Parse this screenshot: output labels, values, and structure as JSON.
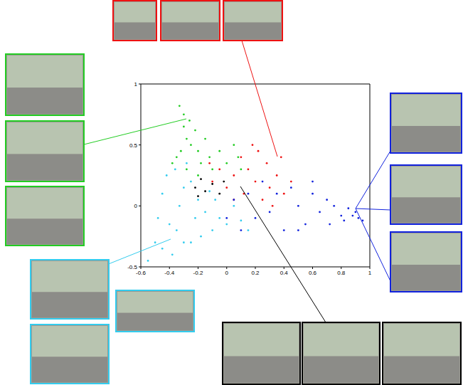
{
  "chart_data": {
    "type": "scatter",
    "xlim": [
      -0.6,
      1
    ],
    "xticks": [
      -0.6,
      -0.4,
      -0.2,
      0,
      0.2,
      0.4,
      0.6,
      0.8,
      1
    ],
    "ylim": [
      -0.5,
      1
    ],
    "yticks": [
      -0.5,
      0,
      0.5,
      1
    ],
    "marker": "dot",
    "series": [
      {
        "color": "#33ccee",
        "x": [
          -0.55,
          -0.5,
          -0.48,
          -0.45,
          -0.42,
          -0.38,
          -0.35,
          -0.33,
          -0.3,
          -0.28,
          -0.25,
          -0.22,
          -0.2,
          -0.18,
          -0.15,
          -0.12,
          -0.1,
          -0.05,
          0,
          0.05,
          0.1,
          0.15,
          -0.4,
          -0.36,
          -0.3,
          -0.25,
          -0.08,
          -0.45
        ],
        "values": [
          -0.45,
          -0.3,
          -0.1,
          0.1,
          0.25,
          -0.4,
          -0.2,
          0.0,
          0.15,
          0.35,
          -0.3,
          -0.1,
          0.05,
          -0.25,
          -0.05,
          0.12,
          -0.2,
          -0.1,
          -0.15,
          0.0,
          -0.12,
          -0.2,
          -0.15,
          0.3,
          -0.3,
          0.2,
          0.05,
          -0.35
        ]
      },
      {
        "color": "#22cc22",
        "x": [
          -0.33,
          -0.3,
          -0.3,
          -0.28,
          -0.32,
          -0.35,
          -0.25,
          -0.22,
          -0.2,
          -0.18,
          -0.15,
          -0.12,
          -0.1,
          -0.05,
          0,
          0.05,
          0.08,
          -0.28,
          -0.38,
          -0.26,
          -0.2,
          0.1
        ],
        "values": [
          0.82,
          0.75,
          0.65,
          0.55,
          0.45,
          0.4,
          0.5,
          0.62,
          0.45,
          0.35,
          0.55,
          0.4,
          0.3,
          0.45,
          0.35,
          0.5,
          0.4,
          0.3,
          0.35,
          0.7,
          0.25,
          0.3
        ]
      },
      {
        "color": "#ee1111",
        "x": [
          -0.1,
          -0.05,
          0,
          0.05,
          0.1,
          0.12,
          0.15,
          0.2,
          0.22,
          0.25,
          0.28,
          0.3,
          0.35,
          0.38,
          0.4,
          0.18,
          0.05,
          -0.12,
          0.45,
          0.32
        ],
        "values": [
          0.2,
          0.3,
          0.15,
          0.25,
          0.4,
          0.1,
          0.3,
          0.2,
          0.45,
          0.05,
          0.35,
          0.15,
          0.25,
          0.4,
          0.1,
          0.5,
          0.05,
          0.35,
          0.2,
          0.0
        ]
      },
      {
        "color": "#1122dd",
        "x": [
          0.0,
          0.05,
          0.1,
          0.15,
          0.2,
          0.25,
          0.3,
          0.35,
          0.4,
          0.45,
          0.5,
          0.55,
          0.6,
          0.65,
          0.7,
          0.72,
          0.75,
          0.8,
          0.85,
          0.88,
          0.9,
          0.92,
          0.95,
          0.6,
          0.5,
          0.82
        ],
        "values": [
          -0.1,
          0.05,
          -0.2,
          0.1,
          -0.1,
          0.2,
          -0.05,
          0.1,
          -0.2,
          0.15,
          0.0,
          -0.15,
          0.1,
          -0.05,
          0.05,
          -0.15,
          0.0,
          -0.08,
          -0.02,
          -0.08,
          -0.05,
          -0.1,
          -0.12,
          0.2,
          -0.2,
          -0.12
        ]
      },
      {
        "color": "#000000",
        "x": [
          -0.22,
          -0.18,
          -0.15,
          -0.1,
          -0.05,
          -0.02,
          -0.2
        ],
        "values": [
          0.15,
          0.22,
          0.12,
          0.18,
          0.1,
          0.2,
          0.08
        ]
      }
    ]
  }
}
